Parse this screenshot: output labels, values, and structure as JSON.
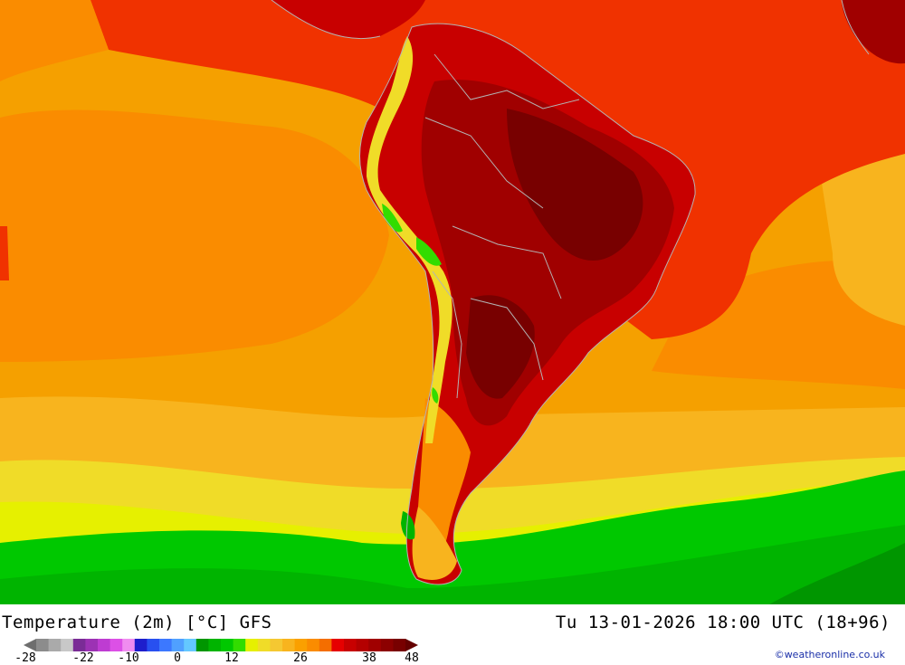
{
  "title": "Temperature (2m) [°C] GFS",
  "valid_time": "Tu 13-01-2026 18:00 UTC (18+96)",
  "credit": "©weatheronline.co.uk",
  "legend": {
    "tick_labels": [
      "-28",
      "-22",
      "-10",
      "0",
      "12",
      "26",
      "38",
      "48"
    ],
    "colors": [
      "#6e6e6e",
      "#8c8c8c",
      "#aaaaaa",
      "#c8c8c8",
      "#7a2c96",
      "#9c32b4",
      "#be3cd2",
      "#dc50e6",
      "#f08cf0",
      "#1e1ecc",
      "#2850f0",
      "#3c78ff",
      "#50a0ff",
      "#64c8ff",
      "#009600",
      "#00b400",
      "#00c800",
      "#32dc00",
      "#e6f000",
      "#f0dc28",
      "#f5c832",
      "#f8b41e",
      "#faa000",
      "#fa8c00",
      "#f46e00",
      "#e60000",
      "#c80000",
      "#b40000",
      "#a00000",
      "#8c0000",
      "#780000",
      "#640000"
    ]
  },
  "map": {
    "ocean_color": "#f5a000",
    "tropical_color": "#f03200",
    "land_hot_color": "#a00000",
    "land_hottest_color": "#780000",
    "southern_green_color": "#00c800",
    "southern_dark_green_color": "#009600",
    "andes_cool_color": "#f0dc28",
    "border_color": "#b4b4b4"
  }
}
